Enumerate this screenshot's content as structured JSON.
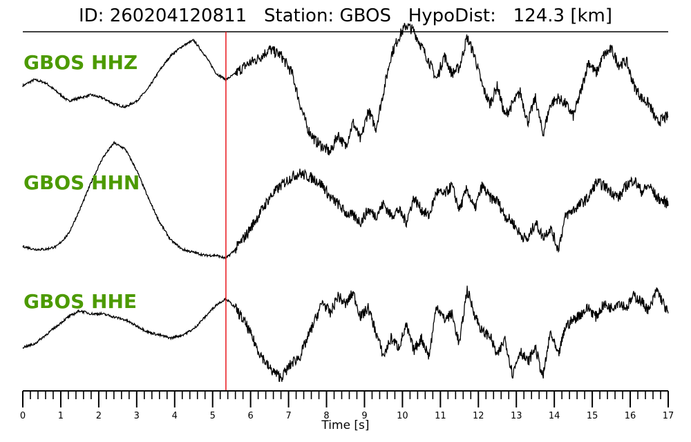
{
  "chart_data": {
    "type": "line",
    "title": "ID: 260204120811   Station: GBOS   HypoDist:   124.3 [km]",
    "xlabel": "Time [s]",
    "xlim": [
      0,
      17
    ],
    "xticks": [
      0,
      1,
      2,
      3,
      4,
      5,
      6,
      7,
      8,
      9,
      10,
      11,
      12,
      13,
      14,
      15,
      16,
      17
    ],
    "minor_tick_step": 0.2,
    "marker": {
      "x": 5.35,
      "color": "#e8141a"
    },
    "label_color": "#4c9a00",
    "line_color": "#000000",
    "series": [
      {
        "name": "GBOS HHZ",
        "x": [
          0,
          0.3,
          0.6,
          0.9,
          1.2,
          1.5,
          1.8,
          2.1,
          2.4,
          2.7,
          3.0,
          3.3,
          3.6,
          3.9,
          4.2,
          4.5,
          4.8,
          5.1,
          5.35,
          5.6,
          5.9,
          6.2,
          6.5,
          6.8,
          7.1,
          7.3,
          7.5,
          7.7,
          7.9,
          8.1,
          8.3,
          8.5,
          8.7,
          8.9,
          9.1,
          9.3,
          9.5,
          9.7,
          9.9,
          10.1,
          10.3,
          10.5,
          10.7,
          10.9,
          11.1,
          11.3,
          11.5,
          11.7,
          11.9,
          12.1,
          12.3,
          12.5,
          12.7,
          12.9,
          13.1,
          13.3,
          13.5,
          13.7,
          13.9,
          14.1,
          14.3,
          14.5,
          14.7,
          14.9,
          15.1,
          15.3,
          15.5,
          15.7,
          15.9,
          16.1,
          16.3,
          16.5,
          16.7,
          17.0
        ],
        "y": [
          0.1,
          0.2,
          0.15,
          0.0,
          -0.15,
          -0.1,
          -0.05,
          -0.1,
          -0.2,
          -0.25,
          -0.15,
          0.05,
          0.35,
          0.6,
          0.75,
          0.85,
          0.6,
          0.3,
          0.2,
          0.3,
          0.45,
          0.55,
          0.7,
          0.6,
          0.3,
          -0.2,
          -0.6,
          -0.8,
          -0.9,
          -1.0,
          -0.7,
          -0.9,
          -0.5,
          -0.8,
          -0.3,
          -0.6,
          0.0,
          0.6,
          0.9,
          1.1,
          1.0,
          0.75,
          0.5,
          0.2,
          0.6,
          0.3,
          0.4,
          0.9,
          0.6,
          0.1,
          -0.2,
          0.1,
          -0.4,
          -0.2,
          0.0,
          -0.5,
          -0.1,
          -0.7,
          -0.2,
          -0.1,
          -0.2,
          -0.4,
          0.0,
          0.5,
          0.3,
          0.6,
          0.7,
          0.45,
          0.5,
          0.1,
          -0.1,
          -0.2,
          -0.5,
          -0.4
        ]
      },
      {
        "name": "GBOS HHN",
        "x": [
          0,
          0.3,
          0.6,
          0.9,
          1.2,
          1.5,
          1.8,
          2.1,
          2.4,
          2.7,
          3.0,
          3.3,
          3.6,
          3.9,
          4.2,
          4.5,
          4.8,
          5.1,
          5.35,
          5.6,
          5.9,
          6.2,
          6.5,
          6.8,
          7.1,
          7.3,
          7.5,
          7.7,
          7.9,
          8.1,
          8.3,
          8.5,
          8.7,
          8.9,
          9.1,
          9.3,
          9.5,
          9.7,
          9.9,
          10.1,
          10.3,
          10.5,
          10.7,
          10.9,
          11.1,
          11.3,
          11.5,
          11.7,
          11.9,
          12.1,
          12.3,
          12.5,
          12.7,
          12.9,
          13.1,
          13.3,
          13.5,
          13.7,
          13.9,
          14.1,
          14.3,
          14.5,
          14.7,
          14.9,
          15.1,
          15.3,
          15.5,
          15.7,
          15.9,
          16.1,
          16.3,
          16.5,
          16.7,
          17.0
        ],
        "y": [
          -0.7,
          -0.75,
          -0.75,
          -0.7,
          -0.5,
          -0.1,
          0.35,
          0.75,
          1.0,
          0.9,
          0.55,
          0.1,
          -0.3,
          -0.6,
          -0.75,
          -0.8,
          -0.85,
          -0.85,
          -0.9,
          -0.75,
          -0.5,
          -0.2,
          0.1,
          0.3,
          0.45,
          0.5,
          0.45,
          0.4,
          0.3,
          0.1,
          0.0,
          -0.15,
          -0.2,
          -0.3,
          -0.1,
          -0.2,
          0.0,
          -0.2,
          -0.1,
          -0.3,
          0.1,
          -0.1,
          -0.2,
          0.2,
          0.15,
          0.3,
          -0.1,
          0.25,
          -0.1,
          0.3,
          0.1,
          0.05,
          -0.2,
          -0.3,
          -0.5,
          -0.6,
          -0.3,
          -0.55,
          -0.4,
          -0.75,
          -0.2,
          -0.1,
          0.0,
          0.1,
          0.35,
          0.3,
          0.2,
          0.1,
          0.3,
          0.4,
          0.2,
          0.3,
          0.1,
          0.0
        ]
      },
      {
        "name": "GBOS HHE",
        "x": [
          0,
          0.3,
          0.6,
          0.9,
          1.2,
          1.5,
          1.8,
          2.1,
          2.4,
          2.7,
          3.0,
          3.3,
          3.6,
          3.9,
          4.2,
          4.5,
          4.8,
          5.1,
          5.35,
          5.6,
          5.9,
          6.2,
          6.5,
          6.8,
          7.1,
          7.3,
          7.5,
          7.7,
          7.9,
          8.1,
          8.3,
          8.5,
          8.7,
          8.9,
          9.1,
          9.3,
          9.5,
          9.7,
          9.9,
          10.1,
          10.3,
          10.5,
          10.7,
          10.9,
          11.1,
          11.3,
          11.5,
          11.7,
          11.9,
          12.1,
          12.3,
          12.5,
          12.7,
          12.9,
          13.1,
          13.3,
          13.5,
          13.7,
          13.9,
          14.1,
          14.3,
          14.5,
          14.7,
          14.9,
          15.1,
          15.3,
          15.5,
          15.7,
          15.9,
          16.1,
          16.3,
          16.5,
          16.7,
          17.0
        ],
        "y": [
          -0.35,
          -0.3,
          -0.15,
          0.0,
          0.15,
          0.25,
          0.2,
          0.2,
          0.15,
          0.1,
          0.0,
          -0.1,
          -0.15,
          -0.2,
          -0.15,
          -0.05,
          0.15,
          0.35,
          0.45,
          0.3,
          0.0,
          -0.4,
          -0.7,
          -0.85,
          -0.6,
          -0.5,
          -0.2,
          0.1,
          0.4,
          0.2,
          0.5,
          0.35,
          0.55,
          0.15,
          0.3,
          -0.1,
          -0.5,
          -0.2,
          -0.35,
          0.0,
          -0.4,
          -0.2,
          -0.5,
          0.35,
          0.1,
          0.2,
          -0.3,
          0.6,
          0.2,
          -0.1,
          -0.15,
          -0.5,
          -0.2,
          -0.8,
          -0.4,
          -0.6,
          -0.35,
          -0.85,
          -0.1,
          -0.5,
          0.0,
          0.1,
          0.2,
          0.3,
          0.15,
          0.35,
          0.3,
          0.4,
          0.3,
          0.5,
          0.4,
          0.25,
          0.6,
          0.2
        ]
      }
    ]
  }
}
